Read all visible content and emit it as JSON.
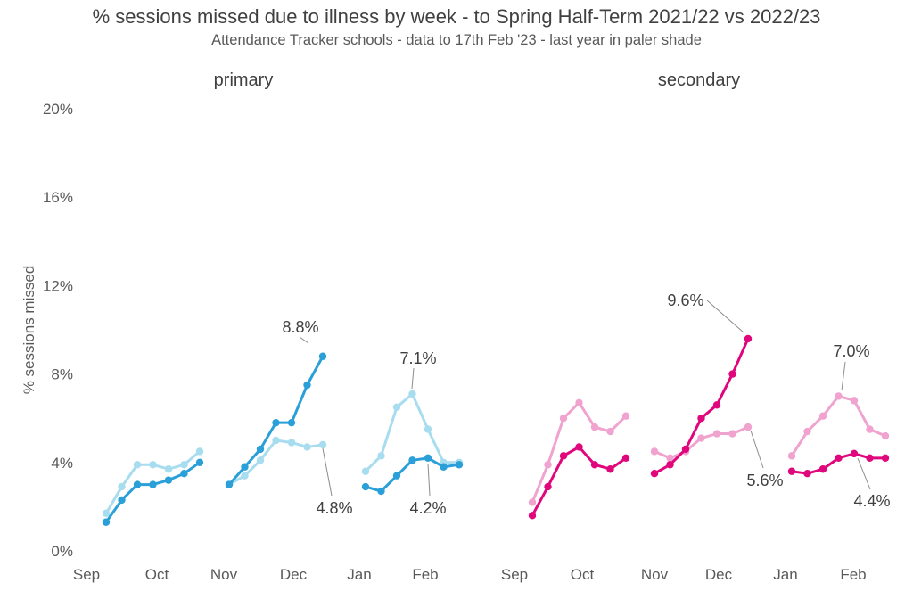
{
  "title": "% sessions missed due to illness by week - to Spring Half-Term 2021/22 vs 2022/23",
  "subtitle": "Attendance Tracker schools - data to 17th Feb '23 - last year in paler shade",
  "colors": {
    "primary_current": "#2A9FD8",
    "primary_last": "#A8DCEF",
    "secondary_current": "#E0077D",
    "secondary_last": "#F0A3CF",
    "leader": "#8C8C8C"
  },
  "chart_data": {
    "type": "line",
    "ylabel": "% sessions missed",
    "ylim": [
      0,
      20
    ],
    "yticks": [
      "0%",
      "4%",
      "8%",
      "12%",
      "16%",
      "20%"
    ],
    "xticks": [
      "Sep",
      "Oct",
      "Nov",
      "Dec",
      "Jan",
      "Feb"
    ],
    "panels": [
      {
        "name": "primary",
        "series": [
          {
            "year": "2021/22",
            "segments": [
              [
                1.7,
                2.9,
                3.9,
                3.9,
                3.7,
                3.9,
                4.5
              ],
              [
                3.0,
                3.4,
                4.1,
                5.0,
                4.9,
                4.7,
                4.8
              ],
              [
                3.6,
                4.3,
                6.5,
                7.1,
                5.5,
                4.0,
                4.0
              ]
            ]
          },
          {
            "year": "2022/23",
            "segments": [
              [
                1.3,
                2.3,
                3.0,
                3.0,
                3.2,
                3.5,
                4.0
              ],
              [
                3.0,
                3.8,
                4.6,
                5.8,
                5.8,
                7.5,
                8.8
              ],
              [
                2.9,
                2.7,
                3.4,
                4.1,
                4.2,
                3.8,
                3.9
              ]
            ]
          }
        ],
        "annotations": [
          "8.8%",
          "4.8%",
          "7.1%",
          "4.2%"
        ]
      },
      {
        "name": "secondary",
        "series": [
          {
            "year": "2021/22",
            "segments": [
              [
                2.2,
                3.9,
                6.0,
                6.7,
                5.6,
                5.4,
                6.1
              ],
              [
                4.5,
                4.2,
                4.5,
                5.1,
                5.3,
                5.3,
                5.6
              ],
              [
                4.3,
                5.4,
                6.1,
                7.0,
                6.8,
                5.5,
                5.2
              ]
            ]
          },
          {
            "year": "2022/23",
            "segments": [
              [
                1.6,
                2.9,
                4.3,
                4.7,
                3.9,
                3.7,
                4.2
              ],
              [
                3.5,
                3.9,
                4.6,
                6.0,
                6.6,
                8.0,
                9.6
              ],
              [
                3.6,
                3.5,
                3.7,
                4.2,
                4.4,
                4.2,
                4.2
              ]
            ]
          }
        ],
        "annotations": [
          "9.6%",
          "5.6%",
          "7.0%",
          "4.4%"
        ]
      }
    ]
  }
}
